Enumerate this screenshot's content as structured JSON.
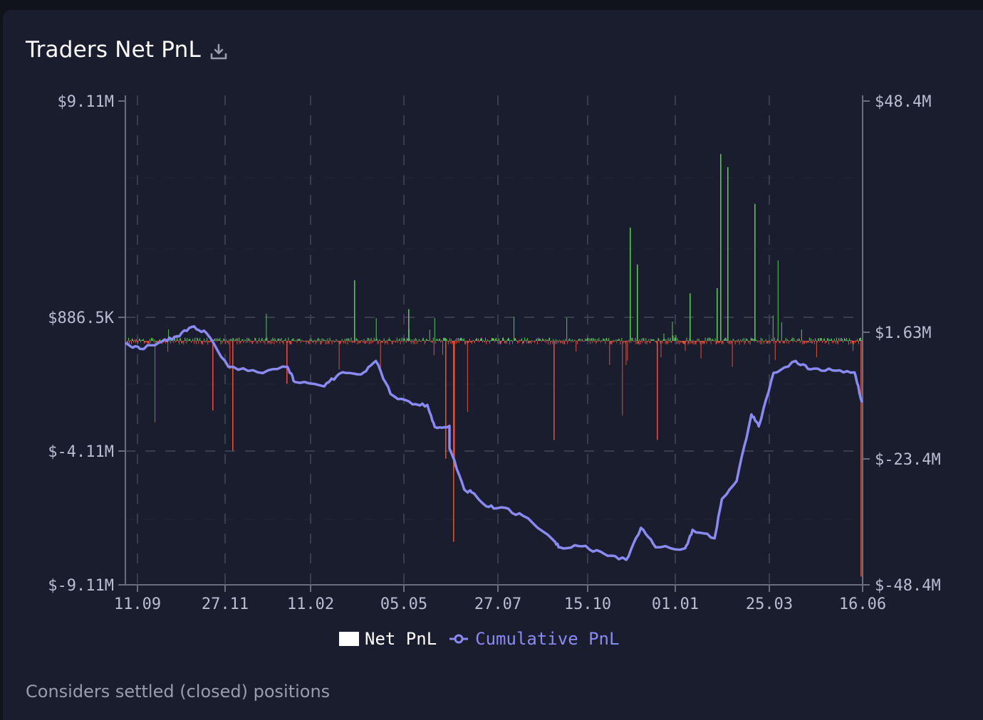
{
  "card": {
    "title": "Traders Net PnL",
    "download_icon": "download-icon",
    "footnote": "Considers settled (closed) positions"
  },
  "legend": {
    "net_label": "Net PnL",
    "cumulative_label": "Cumulative PnL"
  },
  "colors": {
    "background": "#11131c",
    "card": "#1a1d2e",
    "positive": "#5fbf5f",
    "negative": "#d9503f",
    "cumulative": "#8a8af2",
    "grid": "#3a3d4e",
    "axis_text": "#b9bdd1"
  },
  "chart_data": {
    "type": "bar",
    "left_axis": {
      "ticks": [
        "$9.11M",
        "$886.5K",
        "$-4.11M",
        "$-9.11M"
      ],
      "tick_values": [
        9110000,
        886500,
        -4110000,
        -9110000
      ],
      "range": [
        -9110000,
        9110000
      ]
    },
    "right_axis": {
      "ticks": [
        "$48.4M",
        "$1.63M",
        "$-23.4M",
        "$-48.4M"
      ],
      "tick_values": [
        48400000,
        1630000,
        -23400000,
        -48400000
      ],
      "range": [
        -48400000,
        48400000
      ]
    },
    "x_ticks": [
      "11.09",
      "27.11",
      "11.02",
      "05.05",
      "27.07",
      "15.10",
      "01.01",
      "25.03",
      "16.06"
    ],
    "grid": true,
    "legend_position": "bottom-center",
    "series": [
      {
        "name": "Net PnL",
        "kind": "bar",
        "notable_values": [
          {
            "x": "≈ 27.11",
            "value": -4100000
          },
          {
            "x": "≈ 05.05",
            "value": -600000
          },
          {
            "x": "≈ mid-Jun",
            "value": -7500000
          },
          {
            "x": "≈ Feb",
            "value": 7100000
          },
          {
            "x": "≈ Feb",
            "value": 6600000
          },
          {
            "x": "≈ Mar",
            "value": 3000000
          },
          {
            "x": "≈ 16.06",
            "value": -8800000
          }
        ]
      },
      {
        "name": "Cumulative PnL",
        "kind": "line",
        "points": [
          [
            0,
            0.0
          ],
          [
            0.02,
            -1.2
          ],
          [
            0.05,
            0.3
          ],
          [
            0.07,
            1.3
          ],
          [
            0.09,
            3.2
          ],
          [
            0.11,
            2.0
          ],
          [
            0.14,
            -4.8
          ],
          [
            0.18,
            -5.9
          ],
          [
            0.22,
            -4.8
          ],
          [
            0.23,
            -7.8
          ],
          [
            0.27,
            -8.7
          ],
          [
            0.29,
            -6.2
          ],
          [
            0.32,
            -6.3
          ],
          [
            0.34,
            -3.6
          ],
          [
            0.36,
            -10.2
          ],
          [
            0.39,
            -12.3
          ],
          [
            0.41,
            -12.4
          ],
          [
            0.42,
            -16.8
          ],
          [
            0.44,
            -16.6
          ],
          [
            0.44,
            -21.1
          ],
          [
            0.46,
            -29.3
          ],
          [
            0.47,
            -29.9
          ],
          [
            0.49,
            -32.7
          ],
          [
            0.51,
            -32.9
          ],
          [
            0.54,
            -34.6
          ],
          [
            0.58,
            -39.3
          ],
          [
            0.59,
            -40.9
          ],
          [
            0.62,
            -40.7
          ],
          [
            0.65,
            -42.2
          ],
          [
            0.68,
            -43.4
          ],
          [
            0.7,
            -37.0
          ],
          [
            0.72,
            -40.9
          ],
          [
            0.76,
            -41.1
          ],
          [
            0.77,
            -37.4
          ],
          [
            0.8,
            -39.1
          ],
          [
            0.81,
            -31.2
          ],
          [
            0.83,
            -27.6
          ],
          [
            0.85,
            -14.3
          ],
          [
            0.86,
            -16.7
          ],
          [
            0.88,
            -6.0
          ],
          [
            0.91,
            -3.6
          ],
          [
            0.93,
            -5.3
          ],
          [
            0.96,
            -5.5
          ],
          [
            0.99,
            -5.9
          ],
          [
            1.0,
            -11.9
          ]
        ]
      }
    ]
  }
}
